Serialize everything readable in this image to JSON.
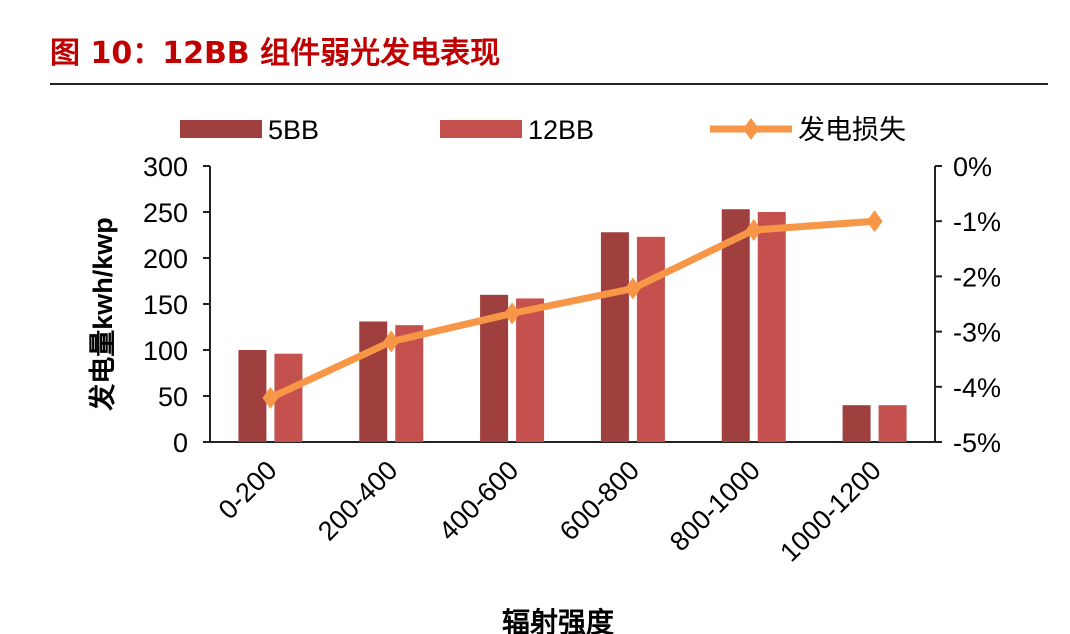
{
  "header": {
    "title": "图 10：12BB 组件弱光发电表现"
  },
  "chart_data": {
    "type": "bar+line",
    "title": "",
    "xlabel": "辐射强度",
    "ylabel": "发电量kwh/kwp",
    "y2label": "",
    "categories": [
      "0-200",
      "200-400",
      "400-600",
      "600-800",
      "800-1000",
      "1000-1200"
    ],
    "ylim": [
      0,
      300
    ],
    "yticks": [
      "0",
      "50",
      "100",
      "150",
      "200",
      "250",
      "300"
    ],
    "y2lim": [
      -5,
      0
    ],
    "y2ticks": [
      "-5%",
      "-4%",
      "-3%",
      "-2%",
      "-1%",
      "0%"
    ],
    "legend_position": "top",
    "grid": false,
    "series": [
      {
        "name": "5BB",
        "type": "bar",
        "axis": "left",
        "color": "#a0403e",
        "values": [
          100,
          131,
          160,
          228,
          253,
          40
        ]
      },
      {
        "name": "12BB",
        "type": "bar",
        "axis": "right-none",
        "color": "#c5514e",
        "values": [
          96,
          127,
          156,
          223,
          250,
          40
        ]
      },
      {
        "name": "发电损失",
        "type": "line",
        "axis": "right",
        "color": "#f79646",
        "marker": "diamond",
        "values": [
          -4.2,
          -3.18,
          -2.67,
          -2.22,
          -1.16,
          -1.0
        ]
      }
    ]
  }
}
